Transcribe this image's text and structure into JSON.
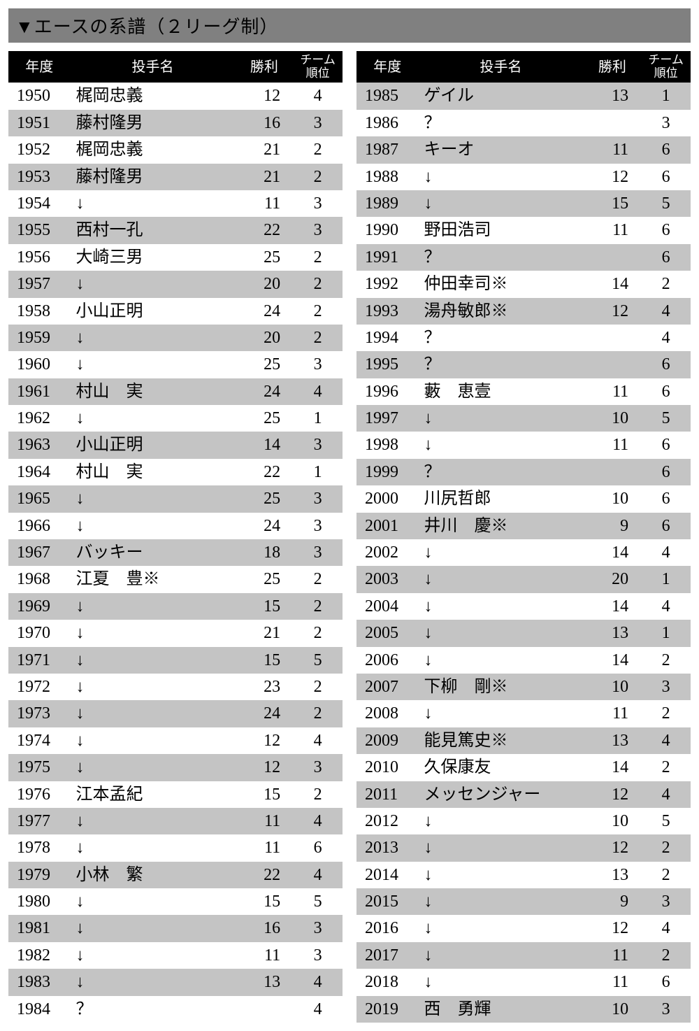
{
  "title": "▼エースの系譜（２リーグ制）",
  "headers": {
    "year": "年度",
    "name": "投手名",
    "wins": "勝利",
    "rank": "チーム\n順位"
  },
  "colors": {
    "title_bg": "#808080",
    "header_bg": "#000000",
    "header_fg": "#ffffff",
    "row_alt_bg": "#c4c4c4",
    "row_bg": "#ffffff",
    "text": "#000000"
  },
  "left": [
    {
      "year": "1950",
      "name": "梶岡忠義",
      "wins": "12",
      "rank": "4"
    },
    {
      "year": "1951",
      "name": "藤村隆男",
      "wins": "16",
      "rank": "3"
    },
    {
      "year": "1952",
      "name": "梶岡忠義",
      "wins": "21",
      "rank": "2"
    },
    {
      "year": "1953",
      "name": "藤村隆男",
      "wins": "21",
      "rank": "2"
    },
    {
      "year": "1954",
      "name": "↓",
      "wins": "11",
      "rank": "3"
    },
    {
      "year": "1955",
      "name": "西村一孔",
      "wins": "22",
      "rank": "3"
    },
    {
      "year": "1956",
      "name": "大崎三男",
      "wins": "25",
      "rank": "2"
    },
    {
      "year": "1957",
      "name": "↓",
      "wins": "20",
      "rank": "2"
    },
    {
      "year": "1958",
      "name": "小山正明",
      "wins": "24",
      "rank": "2"
    },
    {
      "year": "1959",
      "name": "↓",
      "wins": "20",
      "rank": "2"
    },
    {
      "year": "1960",
      "name": "↓",
      "wins": "25",
      "rank": "3"
    },
    {
      "year": "1961",
      "name": "村山　実",
      "wins": "24",
      "rank": "4"
    },
    {
      "year": "1962",
      "name": "↓",
      "wins": "25",
      "rank": "1"
    },
    {
      "year": "1963",
      "name": "小山正明",
      "wins": "14",
      "rank": "3"
    },
    {
      "year": "1964",
      "name": "村山　実",
      "wins": "22",
      "rank": "1"
    },
    {
      "year": "1965",
      "name": "↓",
      "wins": "25",
      "rank": "3"
    },
    {
      "year": "1966",
      "name": "↓",
      "wins": "24",
      "rank": "3"
    },
    {
      "year": "1967",
      "name": "バッキー",
      "wins": "18",
      "rank": "3"
    },
    {
      "year": "1968",
      "name": "江夏　豊※",
      "wins": "25",
      "rank": "2"
    },
    {
      "year": "1969",
      "name": "↓",
      "wins": "15",
      "rank": "2"
    },
    {
      "year": "1970",
      "name": "↓",
      "wins": "21",
      "rank": "2"
    },
    {
      "year": "1971",
      "name": "↓",
      "wins": "15",
      "rank": "5"
    },
    {
      "year": "1972",
      "name": "↓",
      "wins": "23",
      "rank": "2"
    },
    {
      "year": "1973",
      "name": "↓",
      "wins": "24",
      "rank": "2"
    },
    {
      "year": "1974",
      "name": "↓",
      "wins": "12",
      "rank": "4"
    },
    {
      "year": "1975",
      "name": "↓",
      "wins": "12",
      "rank": "3"
    },
    {
      "year": "1976",
      "name": "江本孟紀",
      "wins": "15",
      "rank": "2"
    },
    {
      "year": "1977",
      "name": "↓",
      "wins": "11",
      "rank": "4"
    },
    {
      "year": "1978",
      "name": "↓",
      "wins": "11",
      "rank": "6"
    },
    {
      "year": "1979",
      "name": "小林　繁",
      "wins": "22",
      "rank": "4"
    },
    {
      "year": "1980",
      "name": "↓",
      "wins": "15",
      "rank": "5"
    },
    {
      "year": "1981",
      "name": "↓",
      "wins": "16",
      "rank": "3"
    },
    {
      "year": "1982",
      "name": "↓",
      "wins": "11",
      "rank": "3"
    },
    {
      "year": "1983",
      "name": "↓",
      "wins": "13",
      "rank": "4"
    },
    {
      "year": "1984",
      "name": "？",
      "wins": "",
      "rank": "4"
    }
  ],
  "right": [
    {
      "year": "1985",
      "name": "ゲイル",
      "wins": "13",
      "rank": "1"
    },
    {
      "year": "1986",
      "name": "？",
      "wins": "",
      "rank": "3"
    },
    {
      "year": "1987",
      "name": "キーオ",
      "wins": "11",
      "rank": "6"
    },
    {
      "year": "1988",
      "name": "↓",
      "wins": "12",
      "rank": "6"
    },
    {
      "year": "1989",
      "name": "↓",
      "wins": "15",
      "rank": "5"
    },
    {
      "year": "1990",
      "name": "野田浩司",
      "wins": "11",
      "rank": "6"
    },
    {
      "year": "1991",
      "name": "？",
      "wins": "",
      "rank": "6"
    },
    {
      "year": "1992",
      "name": "仲田幸司※",
      "wins": "14",
      "rank": "2"
    },
    {
      "year": "1993",
      "name": "湯舟敏郎※",
      "wins": "12",
      "rank": "4"
    },
    {
      "year": "1994",
      "name": "？",
      "wins": "",
      "rank": "4"
    },
    {
      "year": "1995",
      "name": "？",
      "wins": "",
      "rank": "6"
    },
    {
      "year": "1996",
      "name": "藪　恵壹",
      "wins": "11",
      "rank": "6"
    },
    {
      "year": "1997",
      "name": "↓",
      "wins": "10",
      "rank": "5"
    },
    {
      "year": "1998",
      "name": "↓",
      "wins": "11",
      "rank": "6"
    },
    {
      "year": "1999",
      "name": "？",
      "wins": "",
      "rank": "6"
    },
    {
      "year": "2000",
      "name": "川尻哲郎",
      "wins": "10",
      "rank": "6"
    },
    {
      "year": "2001",
      "name": "井川　慶※",
      "wins": "9",
      "rank": "6"
    },
    {
      "year": "2002",
      "name": "↓",
      "wins": "14",
      "rank": "4"
    },
    {
      "year": "2003",
      "name": "↓",
      "wins": "20",
      "rank": "1"
    },
    {
      "year": "2004",
      "name": "↓",
      "wins": "14",
      "rank": "4"
    },
    {
      "year": "2005",
      "name": "↓",
      "wins": "13",
      "rank": "1"
    },
    {
      "year": "2006",
      "name": "↓",
      "wins": "14",
      "rank": "2"
    },
    {
      "year": "2007",
      "name": "下柳　剛※",
      "wins": "10",
      "rank": "3"
    },
    {
      "year": "2008",
      "name": "↓",
      "wins": "11",
      "rank": "2"
    },
    {
      "year": "2009",
      "name": "能見篤史※",
      "wins": "13",
      "rank": "4"
    },
    {
      "year": "2010",
      "name": "久保康友",
      "wins": "14",
      "rank": "2"
    },
    {
      "year": "2011",
      "name": "メッセンジャー",
      "wins": "12",
      "rank": "4"
    },
    {
      "year": "2012",
      "name": "↓",
      "wins": "10",
      "rank": "5"
    },
    {
      "year": "2013",
      "name": "↓",
      "wins": "12",
      "rank": "2"
    },
    {
      "year": "2014",
      "name": "↓",
      "wins": "13",
      "rank": "2"
    },
    {
      "year": "2015",
      "name": "↓",
      "wins": "9",
      "rank": "3"
    },
    {
      "year": "2016",
      "name": "↓",
      "wins": "12",
      "rank": "4"
    },
    {
      "year": "2017",
      "name": "↓",
      "wins": "11",
      "rank": "2"
    },
    {
      "year": "2018",
      "name": "↓",
      "wins": "11",
      "rank": "6"
    },
    {
      "year": "2019",
      "name": "西　勇輝",
      "wins": "10",
      "rank": "3"
    }
  ]
}
